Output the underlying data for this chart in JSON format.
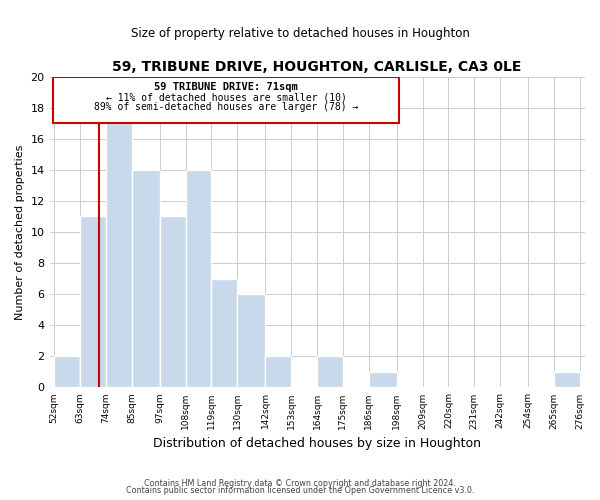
{
  "title": "59, TRIBUNE DRIVE, HOUGHTON, CARLISLE, CA3 0LE",
  "subtitle": "Size of property relative to detached houses in Houghton",
  "xlabel": "Distribution of detached houses by size in Houghton",
  "ylabel": "Number of detached properties",
  "bar_left_edges": [
    52,
    63,
    74,
    85,
    97,
    108,
    119,
    130,
    142,
    153,
    164,
    175,
    186,
    198,
    209,
    220,
    231,
    242,
    254,
    265
  ],
  "bar_heights": [
    2,
    11,
    17,
    14,
    11,
    14,
    7,
    6,
    2,
    0,
    2,
    0,
    1,
    0,
    0,
    0,
    0,
    0,
    0,
    1
  ],
  "bar_widths": [
    11,
    11,
    11,
    12,
    11,
    11,
    11,
    12,
    11,
    11,
    11,
    11,
    12,
    11,
    11,
    11,
    11,
    12,
    11,
    11
  ],
  "bar_color": "#c8d9eb",
  "bar_edge_color": "#ffffff",
  "tick_labels": [
    "52sqm",
    "63sqm",
    "74sqm",
    "85sqm",
    "97sqm",
    "108sqm",
    "119sqm",
    "130sqm",
    "142sqm",
    "153sqm",
    "164sqm",
    "175sqm",
    "186sqm",
    "198sqm",
    "209sqm",
    "220sqm",
    "231sqm",
    "242sqm",
    "254sqm",
    "265sqm",
    "276sqm"
  ],
  "property_line_x": 71,
  "ylim": [
    0,
    20
  ],
  "grid_color": "#cccccc",
  "ann_line1": "59 TRIBUNE DRIVE: 71sqm",
  "ann_line2": "← 11% of detached houses are smaller (10)",
  "ann_line3": "89% of semi-detached houses are larger (78) →",
  "footnote1": "Contains HM Land Registry data © Crown copyright and database right 2024.",
  "footnote2": "Contains public sector information licensed under the Open Government Licence v3.0.",
  "xlim_left": 50,
  "xlim_right": 278
}
